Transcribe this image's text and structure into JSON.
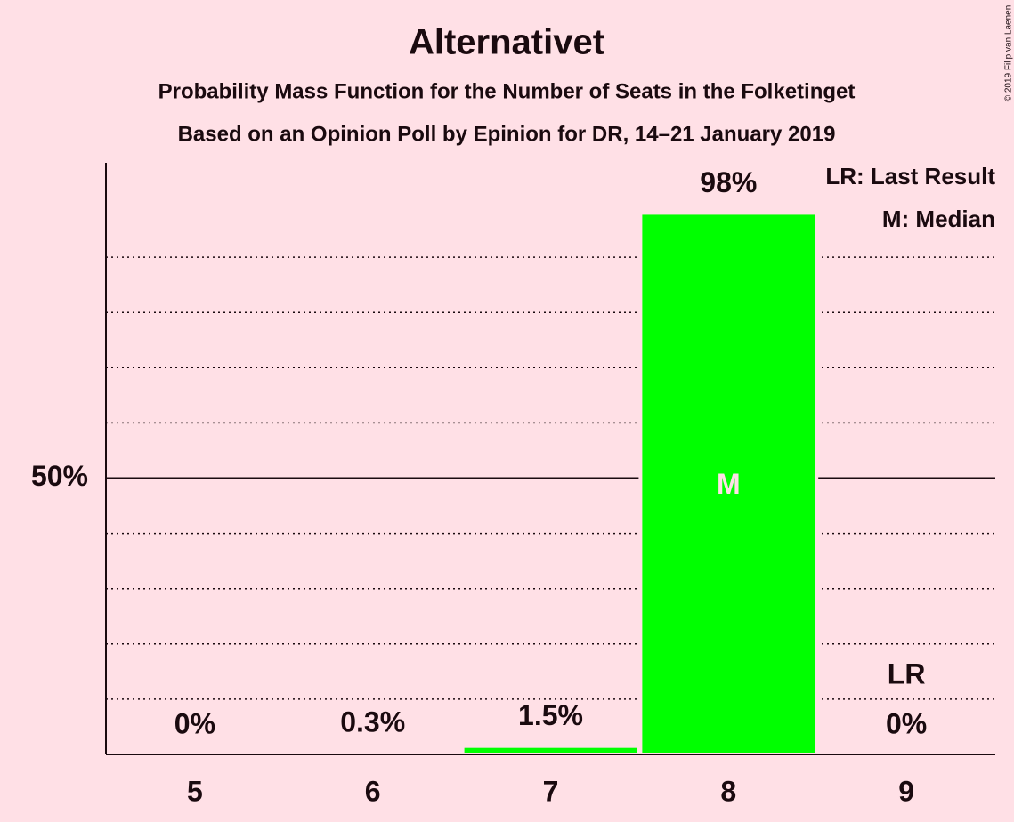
{
  "chart_data": {
    "type": "bar",
    "title": "Alternativet",
    "subtitles": [
      "Probability Mass Function for the Number of Seats in the Folketinget",
      "Based on an Opinion Poll by Epinion for DR, 14–21 January 2019"
    ],
    "categories": [
      5,
      6,
      7,
      8,
      9
    ],
    "values": [
      0,
      0.3,
      1.5,
      98,
      0
    ],
    "value_labels": [
      "0%",
      "0.3%",
      "1.5%",
      "98%",
      "0%"
    ],
    "color": "#00ff00",
    "ylim": [
      0,
      100
    ],
    "yticks": [
      {
        "value": 50,
        "label": "50%"
      }
    ],
    "minor_grid": [
      10,
      20,
      30,
      40,
      60,
      70,
      80,
      90
    ],
    "median_category": 8,
    "median_label": "M",
    "last_result_category": 9,
    "last_result_label": "LR",
    "legend": [
      "LR: Last Result",
      "M: Median"
    ],
    "credit": "© 2019 Filip van Laenen"
  }
}
